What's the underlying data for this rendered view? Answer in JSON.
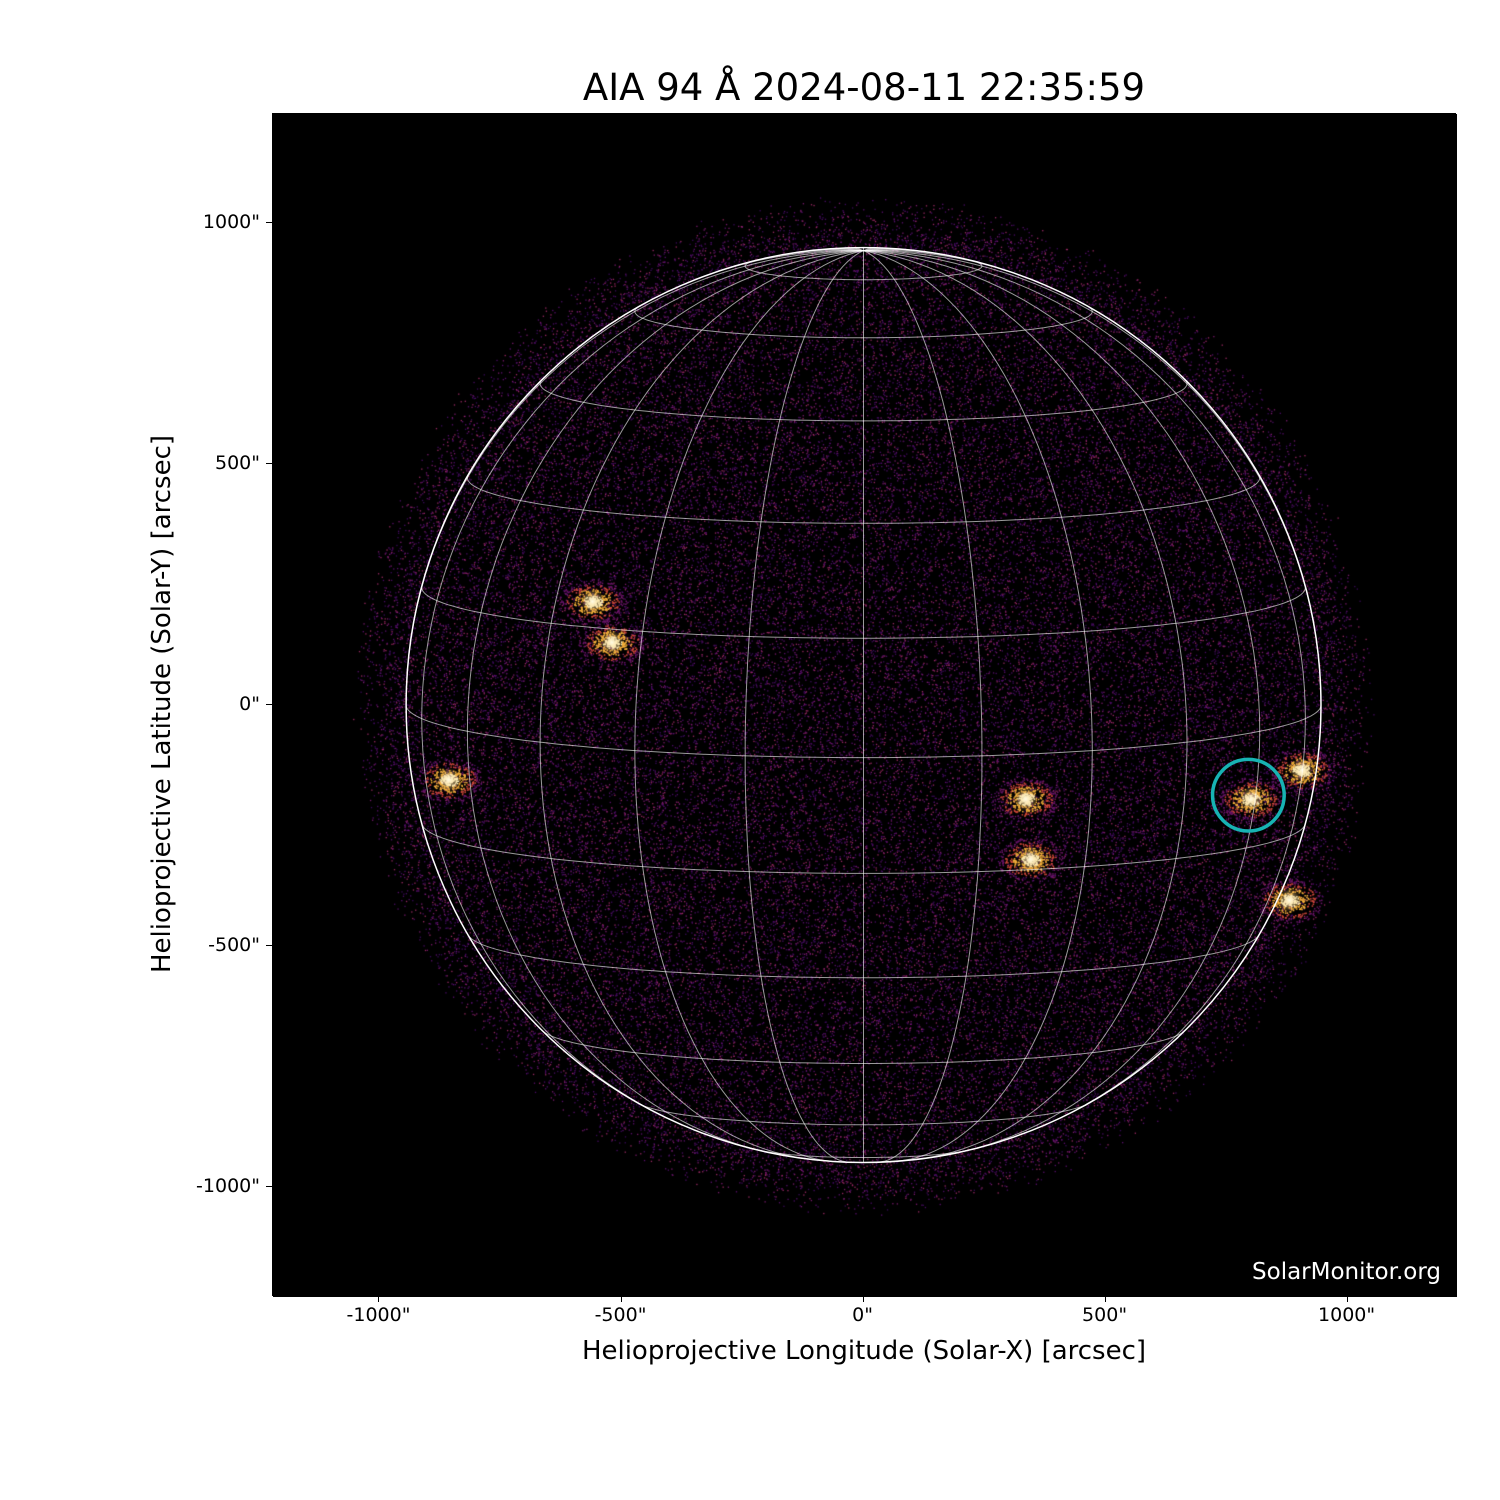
{
  "chart_data": {
    "type": "heatmap",
    "title": "AIA 94 Å 2024-08-11 22:35:59",
    "xlabel": "Helioprojective Longitude (Solar-X) [arcsec]",
    "ylabel": "Helioprojective Latitude (Solar-Y) [arcsec]",
    "xlim": [
      -1220,
      1226
    ],
    "ylim": [
      -1228,
      1226
    ],
    "xticks": [
      {
        "v": -1000,
        "label": "-1000\""
      },
      {
        "v": -500,
        "label": "-500\""
      },
      {
        "v": 0,
        "label": "0\""
      },
      {
        "v": 500,
        "label": "500\""
      },
      {
        "v": 1000,
        "label": "1000\""
      }
    ],
    "yticks": [
      {
        "v": 1000,
        "label": "1000\""
      },
      {
        "v": 500,
        "label": "500\""
      },
      {
        "v": 0,
        "label": "0\""
      },
      {
        "v": -500,
        "label": "-500\""
      },
      {
        "v": -1000,
        "label": "-1000\""
      }
    ],
    "colormap": "inferno-like (sdoaia94)",
    "solar_radius_arcsec": 945,
    "grid": {
      "heliographic": true,
      "spacing_deg": 15,
      "b0_deg": 6.6,
      "color": "#ffffff"
    },
    "bright_regions": [
      {
        "x": -520,
        "y": 130
      },
      {
        "x": -857,
        "y": -155
      },
      {
        "x": 335,
        "y": -195
      },
      {
        "x": 345,
        "y": -320
      },
      {
        "x": 800,
        "y": -195
      },
      {
        "x": 905,
        "y": -135
      },
      {
        "x": 880,
        "y": -405
      },
      {
        "x": -560,
        "y": 215
      }
    ],
    "annotation_circle": {
      "x": 795,
      "y": -187,
      "r": 74,
      "color": "#17b3b3"
    },
    "watermark": "SolarMonitor.org"
  }
}
